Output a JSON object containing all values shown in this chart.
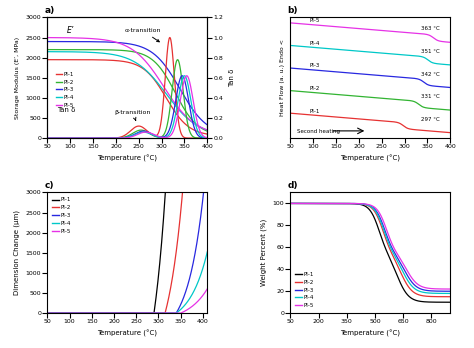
{
  "colors": {
    "PI1": "#e63232",
    "PI2": "#32b432",
    "PI3": "#2828e0",
    "PI4": "#00c8c8",
    "PI5": "#e632e6"
  },
  "panel_a": {
    "xlabel": "Temperature (°C)",
    "ylabel_left": "Storage Modulus (E’, MPa)",
    "ylabel_right": "Tan δ",
    "label_E": "E’",
    "label_tan": "Tan δ",
    "label_alpha": "α-transition",
    "label_beta": "β-transition"
  },
  "panel_b": {
    "xlabel": "Temperature (°C)",
    "ylabel": "Heat Flow (a. u.) Endo <",
    "labels": [
      "PI-5",
      "PI-4",
      "PI-3",
      "PI-2",
      "PI-1"
    ],
    "temps": [
      "363 °C",
      "351 °C",
      "342 °C",
      "331 °C",
      "297 °C"
    ],
    "second_heating": "Second heating"
  },
  "panel_c": {
    "xlabel": "Temperature (°C)",
    "ylabel": "Dimension Change (μm)"
  },
  "panel_d": {
    "xlabel": "Temperature (°C)",
    "ylabel": "Weight Percent (%)"
  }
}
